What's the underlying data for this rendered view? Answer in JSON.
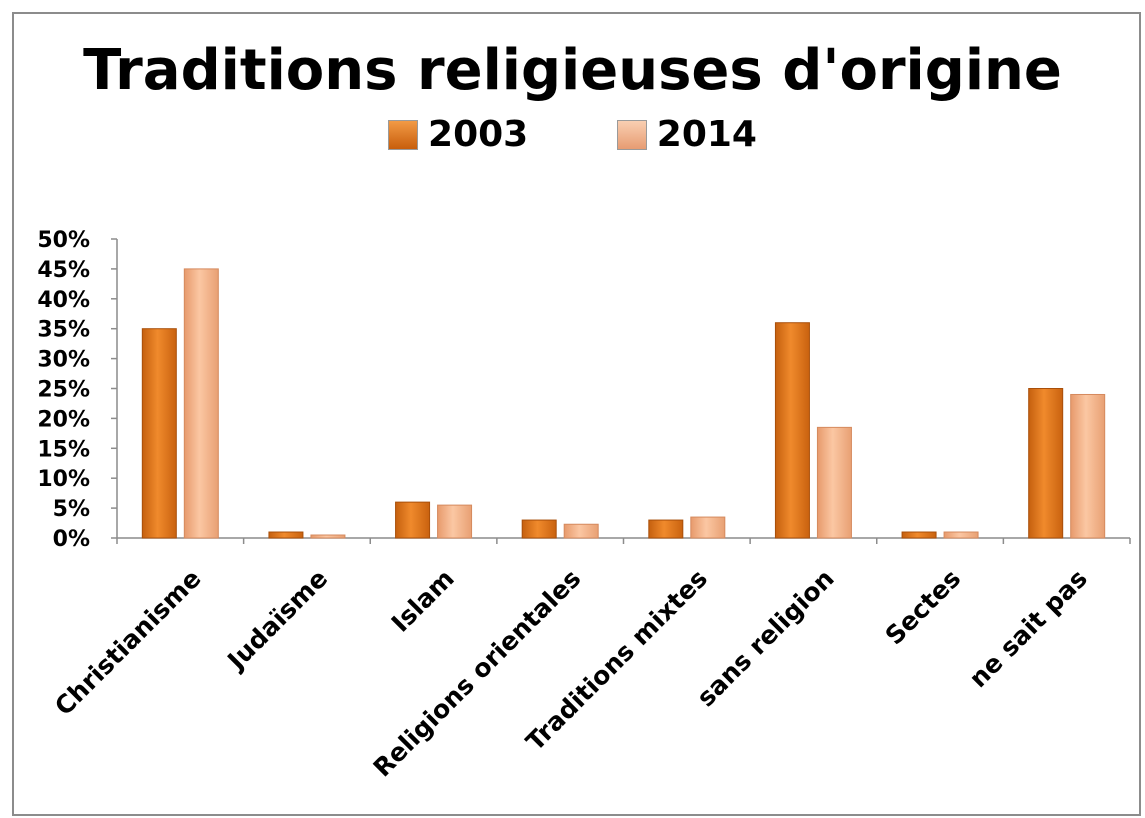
{
  "chart_data": {
    "type": "bar",
    "title": "Traditions religieuses d'origine",
    "categories": [
      "Christianisme",
      "Judaïsme",
      "Islam",
      "Religions orientales",
      "Traditions mixtes",
      "sans religion",
      "Sectes",
      "ne sait pas"
    ],
    "series": [
      {
        "name": "2003",
        "values": [
          35,
          1,
          6,
          3,
          3,
          36,
          1,
          25
        ],
        "color": "#e0781c"
      },
      {
        "name": "2014",
        "values": [
          45,
          0.5,
          5.5,
          2.3,
          3.5,
          18.5,
          1,
          24
        ],
        "color": "#f2b088"
      }
    ],
    "y_ticks": [
      "0%",
      "5%",
      "10%",
      "15%",
      "20%",
      "25%",
      "30%",
      "35%",
      "40%",
      "45%",
      "50%"
    ],
    "ylim": [
      0,
      50
    ],
    "grid": false,
    "legend_position": "top"
  }
}
